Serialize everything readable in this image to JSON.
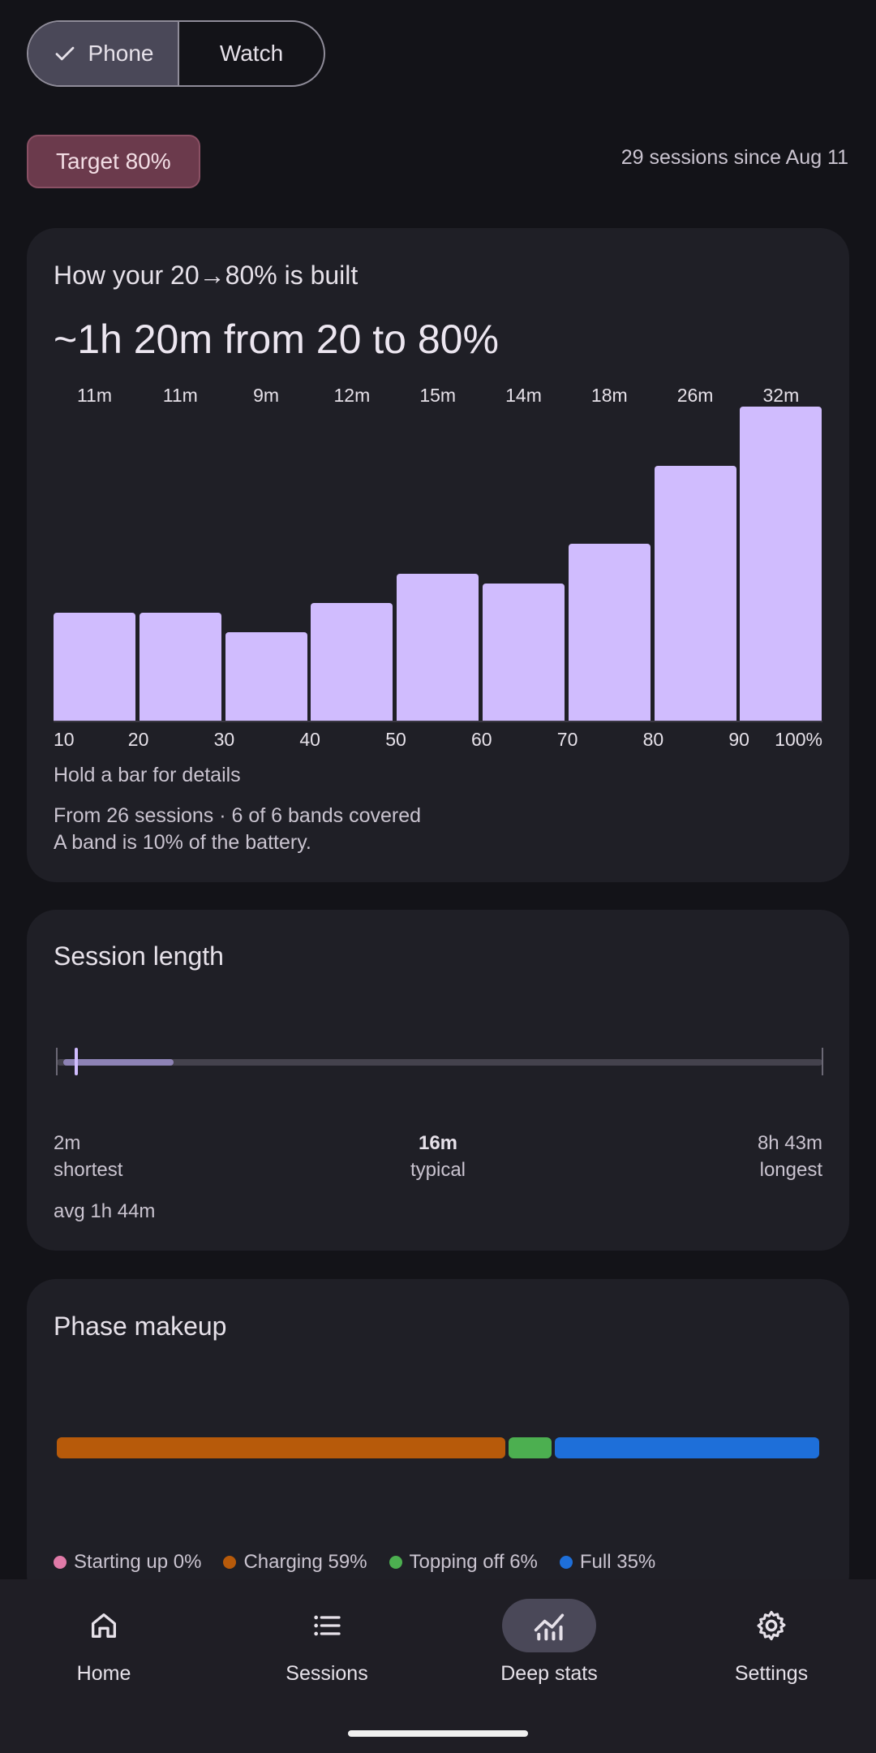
{
  "device_toggle": {
    "selected": "Phone",
    "other": "Watch"
  },
  "target_chip": "Target 80%",
  "sessions_since": "29 sessions since Aug 11",
  "build_card": {
    "title": "How your 20→80% is built",
    "headline": "~1h 20m from 20 to 80%",
    "hint": "Hold a bar for details",
    "footnote_1": "From 26 sessions · 6 of 6 bands covered",
    "footnote_2": "A band is 10% of the battery."
  },
  "chart_data": {
    "type": "bar",
    "categories": [
      "10-20",
      "20-30",
      "30-40",
      "40-50",
      "50-60",
      "60-70",
      "70-80",
      "80-90",
      "90-100"
    ],
    "values": [
      11,
      11,
      9,
      12,
      15,
      14,
      18,
      26,
      32
    ],
    "data_labels": [
      "11m",
      "11m",
      "9m",
      "12m",
      "15m",
      "14m",
      "18m",
      "26m",
      "32m"
    ],
    "x_tick_labels": [
      "10",
      "20",
      "30",
      "40",
      "50",
      "60",
      "70",
      "80",
      "90",
      "100%"
    ],
    "unit": "minutes",
    "bar_color": "#d0bcfe"
  },
  "session_card": {
    "title": "Session length",
    "shortest": {
      "value": "2m",
      "label": "shortest"
    },
    "typical": {
      "value": "16m",
      "label": "typical"
    },
    "longest": {
      "value": "8h 43m",
      "label": "longest"
    },
    "avg": "avg 1h 44m"
  },
  "phase_card": {
    "title": "Phase makeup",
    "phases": [
      {
        "label": "Starting up 0%",
        "percent": 0,
        "color": "#e07aa8"
      },
      {
        "label": "Charging 59%",
        "percent": 59,
        "color": "#b75a0a"
      },
      {
        "label": "Topping off 6%",
        "percent": 6,
        "color": "#4caf50"
      },
      {
        "label": "Full 35%",
        "percent": 35,
        "color": "#1e6fd9"
      }
    ]
  },
  "nav": {
    "items": [
      {
        "label": "Home",
        "icon": "home-icon"
      },
      {
        "label": "Sessions",
        "icon": "list-icon"
      },
      {
        "label": "Deep stats",
        "icon": "chart-icon"
      },
      {
        "label": "Settings",
        "icon": "gear-icon"
      }
    ],
    "active": "Deep stats"
  }
}
